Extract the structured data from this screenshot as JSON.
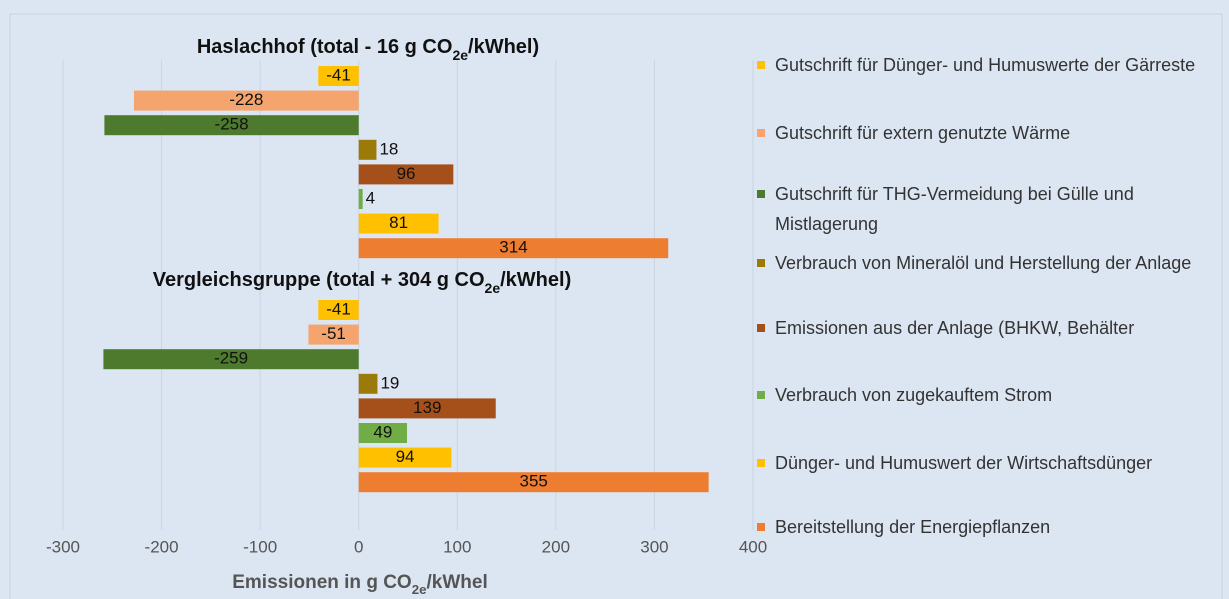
{
  "chart_data": {
    "type": "bar",
    "orientation": "horizontal",
    "categories": [
      {
        "text": "Haslachhof (total - 16 g CO",
        "sub": "2e",
        "after": "/kWhel)"
      },
      {
        "text": "Vergleichsgruppe (total  + 304 g CO",
        "sub": "2e",
        "after": "/kWhel)"
      }
    ],
    "series": [
      {
        "name": "Gutschrift für Dünger- und Humuswerte der Gärreste",
        "color": "#ffc000",
        "values": [
          -41,
          -41
        ]
      },
      {
        "name": "Gutschrift für extern genutzte Wärme",
        "color": "#f4a46c",
        "values": [
          -228,
          -51
        ]
      },
      {
        "name": "Gutschrift für THG-Vermeidung bei Gülle und Mistlagerung",
        "color": "#4e7a2e",
        "values": [
          -258,
          -259
        ]
      },
      {
        "name": "Verbrauch von Mineralöl und Herstellung der Anlage",
        "color": "#9c7a0a",
        "values": [
          18,
          19
        ]
      },
      {
        "name": "Emissionen aus der Anlage (BHKW, Behälter",
        "color": "#a5501a",
        "values": [
          96,
          139
        ]
      },
      {
        "name": "Verbrauch von zugekauftem Strom",
        "color": "#70ad47",
        "values": [
          4,
          49
        ]
      },
      {
        "name": "Dünger- und Humuswert der Wirtschaftsdünger",
        "color": "#ffc000",
        "values": [
          81,
          94
        ]
      },
      {
        "name": "Bereitstellung der Energiepflanzen",
        "color": "#ed7d31",
        "values": [
          314,
          355
        ]
      }
    ],
    "x_label": {
      "text": "Emissionen in g CO",
      "sub": "2e",
      "after": "/kWhel"
    },
    "xlim": [
      -300,
      400
    ],
    "xticks": [
      -300,
      -200,
      -100,
      0,
      100,
      200,
      300,
      400
    ],
    "grid": true
  }
}
